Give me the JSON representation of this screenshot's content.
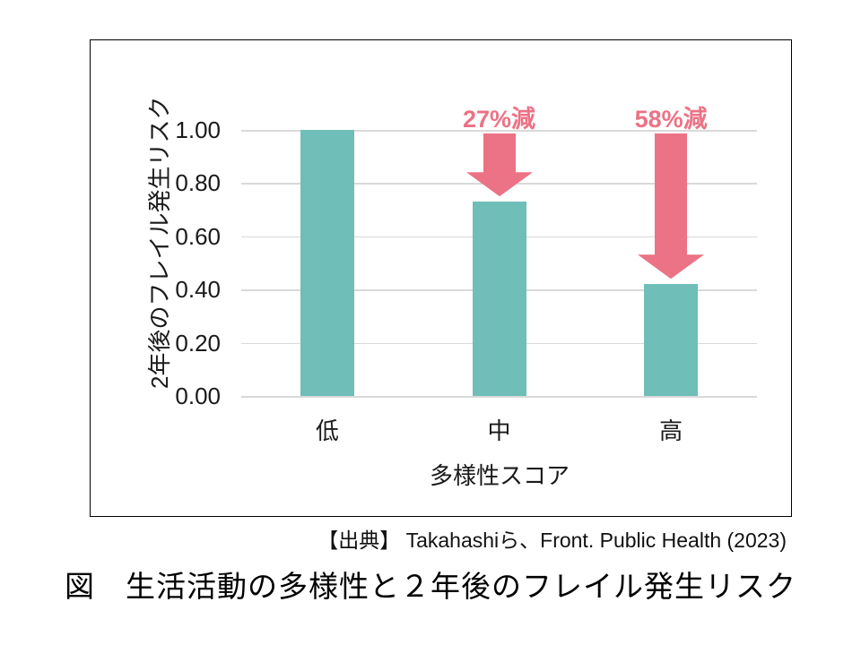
{
  "chart_data": {
    "type": "bar",
    "categories": [
      "低",
      "中",
      "高"
    ],
    "values": [
      1.0,
      0.73,
      0.42
    ],
    "xlabel": "多様性スコア",
    "ylabel": "2年後のフレイル発生リスク",
    "ylim": [
      0,
      1.0
    ],
    "yticks": [
      {
        "value": 1.0,
        "label": "1.00"
      },
      {
        "value": 0.8,
        "label": "0.80"
      },
      {
        "value": 0.6,
        "label": "0.60"
      },
      {
        "value": 0.4,
        "label": "0.40"
      },
      {
        "value": 0.2,
        "label": "0.20"
      },
      {
        "value": 0.0,
        "label": "0.00"
      }
    ],
    "grid": true,
    "legend": false,
    "annotations": [
      {
        "category": "中",
        "label": "27%減"
      },
      {
        "category": "高",
        "label": "58%減"
      }
    ],
    "colors": {
      "bar": "#6fbeb7",
      "arrow": "#ec7285",
      "annotation_text": "#ec7285",
      "gridline": "#d9d9d9",
      "axis_text": "#1a1a1a",
      "frame_border": "#000000"
    }
  },
  "source_line": "【出典】 Takahashiら、Front. Public Health (2023)",
  "figure_caption": "図　生活活動の多様性と２年後のフレイル発生リスク"
}
